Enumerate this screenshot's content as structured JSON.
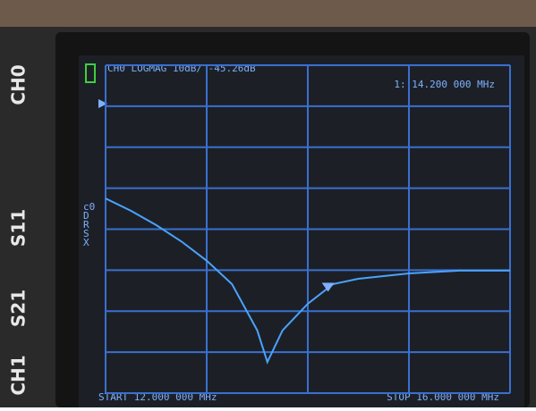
{
  "chart_data": {
    "type": "line",
    "header": "CH0 LOGMAG 10dB/ -45.26dB",
    "marker": {
      "label": "1: 14.200 000 MHz",
      "x": 14.2,
      "value": -45.26
    },
    "start_label": "START 12.000 000 MHz",
    "stop_label": "STOP 16.000 000 MHz",
    "side_labels": [
      "c0",
      "D",
      "R",
      "S",
      "X"
    ],
    "bezel_labels": [
      "CH0",
      "S11",
      "S21",
      "CH1"
    ],
    "x": [
      12.0,
      12.25,
      12.5,
      12.75,
      13.0,
      13.25,
      13.5,
      13.6,
      13.75,
      14.0,
      14.25,
      14.5,
      15.0,
      15.5,
      16.0
    ],
    "values": [
      -22.5,
      -25.5,
      -29,
      -33,
      -37.7,
      -43.4,
      -54.7,
      -62.4,
      -54.7,
      -48.2,
      -43.4,
      -42.1,
      -40.8,
      -40.1,
      -40.1
    ],
    "color": "#4aa3ff",
    "xlim": [
      12,
      16
    ],
    "xticks": [
      12,
      13,
      14,
      15,
      16
    ],
    "ylim": [
      -70,
      10
    ],
    "yticks": [
      10,
      0,
      -10,
      -20,
      -30,
      -40,
      -50,
      -60,
      -70
    ],
    "grid": true
  }
}
